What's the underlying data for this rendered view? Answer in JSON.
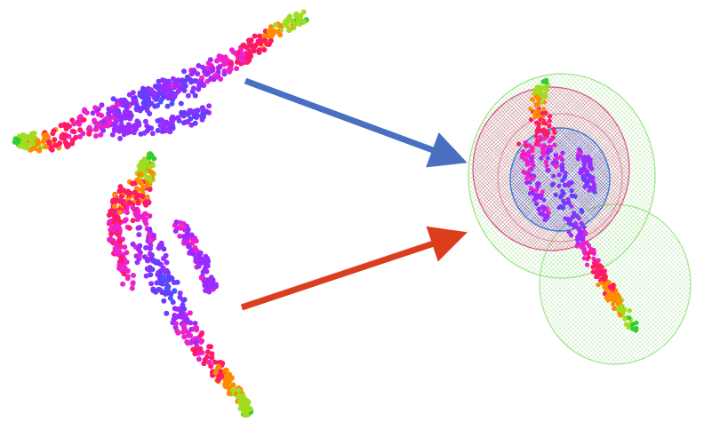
{
  "figure": {
    "background": "#ffffff",
    "clouds": [
      {
        "id": "pose-top",
        "pose": "horizontal"
      },
      {
        "id": "pose-bottom",
        "pose": "vertical"
      },
      {
        "id": "pose-result",
        "pose": "vertical-with-spheres"
      }
    ],
    "arrows": [
      {
        "id": "arrow-blue",
        "color": "#4a6fc0"
      },
      {
        "id": "arrow-red",
        "color": "#dc3d1d"
      }
    ],
    "sphere_colors": {
      "green": "#8fe07a",
      "magenta": "#d8347c",
      "blue": "#3a6fd8"
    },
    "point_palette": [
      "#33cc33",
      "#a0dd20",
      "#ff8a00",
      "#ff1a66",
      "#ee22cc",
      "#9b2bff",
      "#6a3cff",
      "#3b5bff",
      "#1aa6ff"
    ]
  }
}
